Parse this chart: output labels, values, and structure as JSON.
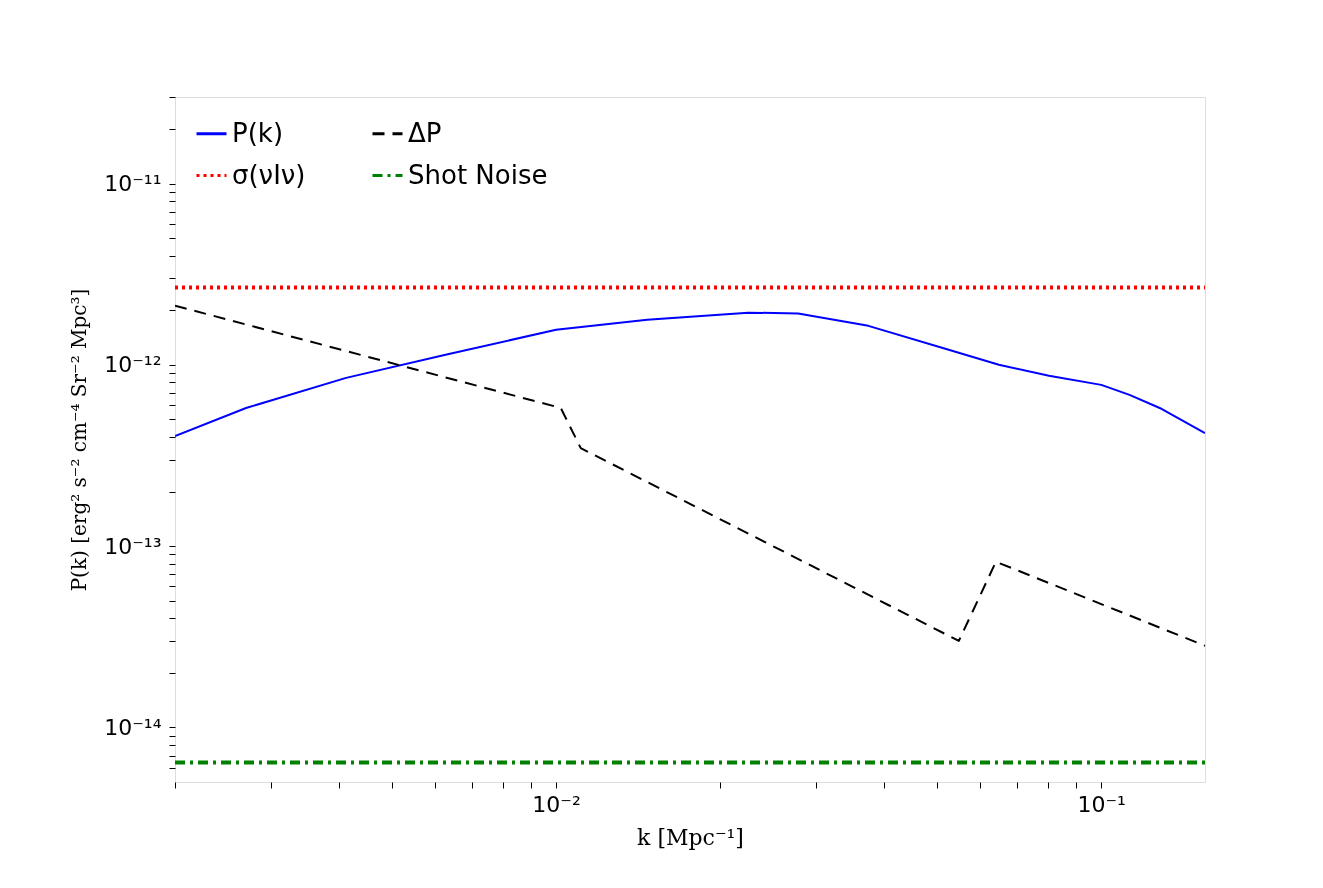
{
  "chart_data": {
    "type": "line",
    "xlabel": "k [Mpc⁻¹]",
    "ylabel": "P(k) [erg² s⁻² cm⁻⁴ Sr⁻² Mpc³]",
    "log": "xy",
    "xlim": [
      0.002,
      0.155
    ],
    "ylim": [
      5e-15,
      3e-11
    ],
    "xticks": [
      {
        "value": 0.002,
        "label": null
      },
      {
        "value": 0.003,
        "label": null
      },
      {
        "value": 0.004,
        "label": null
      },
      {
        "value": 0.005,
        "label": null
      },
      {
        "value": 0.006,
        "label": null
      },
      {
        "value": 0.007,
        "label": null
      },
      {
        "value": 0.008,
        "label": null
      },
      {
        "value": 0.009,
        "label": null
      },
      {
        "value": 0.01,
        "label": "10⁻²"
      },
      {
        "value": 0.02,
        "label": null
      },
      {
        "value": 0.03,
        "label": null
      },
      {
        "value": 0.04,
        "label": null
      },
      {
        "value": 0.05,
        "label": null
      },
      {
        "value": 0.06,
        "label": null
      },
      {
        "value": 0.07,
        "label": null
      },
      {
        "value": 0.08,
        "label": null
      },
      {
        "value": 0.09,
        "label": null
      },
      {
        "value": 0.1,
        "label": "10⁻¹"
      }
    ],
    "yticks": [
      {
        "value": 6e-15,
        "label": null
      },
      {
        "value": 7e-15,
        "label": null
      },
      {
        "value": 8e-15,
        "label": null
      },
      {
        "value": 9e-15,
        "label": null
      },
      {
        "value": 1e-14,
        "label": "10⁻¹⁴"
      },
      {
        "value": 2e-14,
        "label": null
      },
      {
        "value": 3e-14,
        "label": null
      },
      {
        "value": 4e-14,
        "label": null
      },
      {
        "value": 5e-14,
        "label": null
      },
      {
        "value": 6e-14,
        "label": null
      },
      {
        "value": 7e-14,
        "label": null
      },
      {
        "value": 8e-14,
        "label": null
      },
      {
        "value": 9e-14,
        "label": null
      },
      {
        "value": 1e-13,
        "label": "10⁻¹³"
      },
      {
        "value": 2e-13,
        "label": null
      },
      {
        "value": 3e-13,
        "label": null
      },
      {
        "value": 4e-13,
        "label": null
      },
      {
        "value": 5e-13,
        "label": null
      },
      {
        "value": 6e-13,
        "label": null
      },
      {
        "value": 7e-13,
        "label": null
      },
      {
        "value": 8e-13,
        "label": null
      },
      {
        "value": 9e-13,
        "label": null
      },
      {
        "value": 1e-12,
        "label": "10⁻¹²"
      },
      {
        "value": 2e-12,
        "label": null
      },
      {
        "value": 3e-12,
        "label": null
      },
      {
        "value": 4e-12,
        "label": null
      },
      {
        "value": 5e-12,
        "label": null
      },
      {
        "value": 6e-12,
        "label": null
      },
      {
        "value": 7e-12,
        "label": null
      },
      {
        "value": 8e-12,
        "label": null
      },
      {
        "value": 9e-12,
        "label": null
      },
      {
        "value": 1e-11,
        "label": "10⁻¹¹"
      },
      {
        "value": 2e-11,
        "label": null
      },
      {
        "value": 3e-11,
        "label": null
      }
    ],
    "grid": false,
    "legend": "top left",
    "series": [
      {
        "name": "P(k)",
        "color": "#0000ff",
        "line_style": "solid",
        "x": [
          0.002,
          0.0027,
          0.00412,
          0.0063,
          0.01,
          0.0147,
          0.0225,
          0.0278,
          0.0374,
          0.0525,
          0.0649,
          0.0802,
          0.1,
          0.1127,
          0.128,
          0.155
        ],
        "values": [
          4.05e-13,
          5.78e-13,
          8.47e-13,
          1.14e-12,
          1.56e-12,
          1.77e-12,
          1.94e-12,
          1.92e-12,
          1.64e-12,
          1.21e-12,
          1e-12,
          8.7e-13,
          7.75e-13,
          6.83e-13,
          5.78e-13,
          4.2e-13
        ]
      },
      {
        "name": "σ(νIν)",
        "color": "#ff0000",
        "line_style": "dotted",
        "x": [
          0.002,
          0.155
        ],
        "values": [
          2.67e-12,
          2.67e-12
        ]
      },
      {
        "name": "ΔP",
        "color": "#000000",
        "line_style": "dashed",
        "x": [
          0.002,
          0.0102,
          0.0111,
          0.0548,
          0.0641,
          0.155
        ],
        "values": [
          2.12e-12,
          5.78e-13,
          3.47e-13,
          3e-14,
          8.2e-14,
          2.82e-14
        ]
      },
      {
        "name": "Shot Noise",
        "color": "#008000",
        "line_style": "dashdot",
        "x": [
          0.002,
          0.155
        ],
        "values": [
          6.4e-15,
          6.4e-15
        ]
      }
    ]
  }
}
